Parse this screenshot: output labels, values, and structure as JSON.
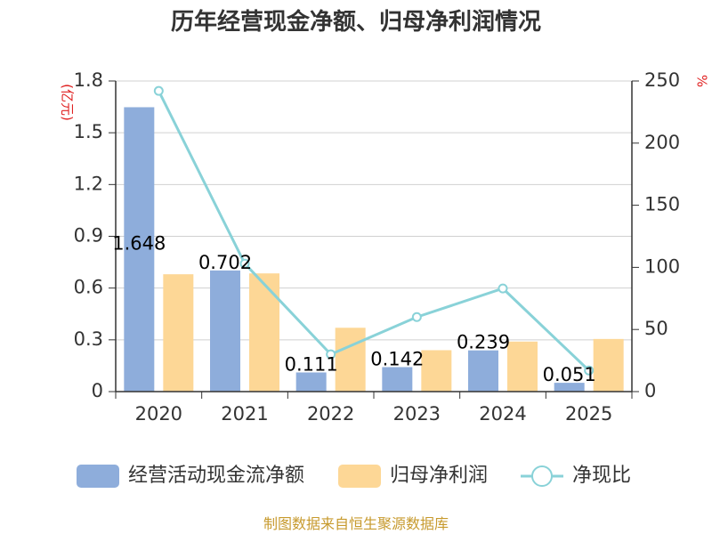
{
  "chart_data": {
    "type": "bar",
    "title": "历年经营现金净额、归母净利润情况",
    "categories": [
      "2020",
      "2021",
      "2022",
      "2023",
      "2024",
      "2025"
    ],
    "series": [
      {
        "name": "经营活动现金流净额",
        "type": "bar",
        "axis": "left",
        "color": "#8eaddb",
        "values": [
          1.648,
          0.702,
          0.111,
          0.142,
          0.239,
          0.051
        ],
        "labels": [
          "1.648",
          "0.702",
          "0.111",
          "0.142",
          "0.239",
          "0.051"
        ]
      },
      {
        "name": "归母净利润",
        "type": "bar",
        "axis": "left",
        "color": "#fdd796",
        "values": [
          0.68,
          0.685,
          0.37,
          0.24,
          0.29,
          0.305
        ]
      },
      {
        "name": "净现比",
        "type": "line",
        "axis": "right",
        "color": "#89d2d8",
        "values": [
          242,
          103,
          30,
          60,
          83,
          17
        ]
      }
    ],
    "y_left": {
      "unit": "(亿元)",
      "ylim": [
        0,
        1.8
      ],
      "ticks": [
        0,
        0.3,
        0.6,
        0.9,
        1.2,
        1.5,
        1.8
      ],
      "tick_labels": [
        "0",
        "0.3",
        "0.6",
        "0.9",
        "1.2",
        "1.5",
        "1.8"
      ]
    },
    "y_right": {
      "unit": "%",
      "ylim": [
        0,
        250
      ],
      "ticks": [
        0,
        50,
        100,
        150,
        200,
        250
      ],
      "tick_labels": [
        "0",
        "50",
        "100",
        "150",
        "200",
        "250"
      ]
    },
    "grid": true,
    "legend_position": "bottom",
    "source": "制图数据来自恒生聚源数据库",
    "unit_color": "#e02020",
    "axis_color": "#333333",
    "grid_color": "#d0d0d0"
  }
}
